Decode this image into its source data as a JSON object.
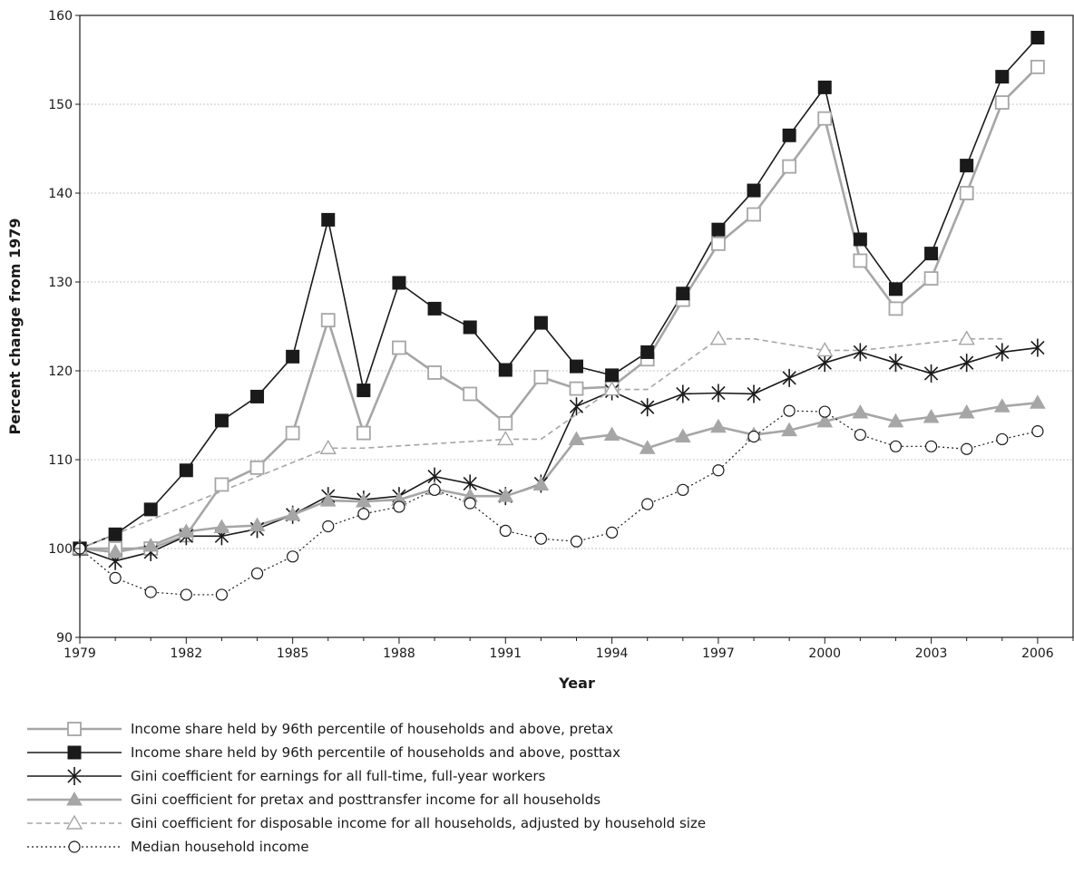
{
  "chart_data": {
    "type": "line",
    "xlabel": "Year",
    "ylabel": "Percent change from 1979",
    "xlim": [
      1979,
      2007
    ],
    "ylim": [
      90,
      160
    ],
    "x_ticks": [
      1979,
      1982,
      1985,
      1988,
      1991,
      1994,
      1997,
      2000,
      2003,
      2006
    ],
    "x_tick_labels": [
      "1979",
      "1982",
      "1985",
      "1988",
      "1991",
      "1994",
      "1997",
      "2000",
      "2003",
      "2006"
    ],
    "y_ticks": [
      90,
      100,
      110,
      120,
      130,
      140,
      150,
      160
    ],
    "y_tick_labels": [
      "90",
      "100",
      "110",
      "120",
      "130",
      "140",
      "150",
      "160"
    ],
    "grid": "horizontal dashed",
    "legend_position": "bottom",
    "series": [
      {
        "name": "Income share held by 96th percentile of households and above, pretax",
        "style": "solid",
        "color": "#a6a6a6",
        "marker": "square-open",
        "x": [
          1979,
          1980,
          1981,
          1982,
          1983,
          1984,
          1985,
          1986,
          1987,
          1988,
          1989,
          1990,
          1991,
          1992,
          1993,
          1994,
          1995,
          1996,
          1997,
          1998,
          1999,
          2000,
          2001,
          2002,
          2003,
          2004,
          2005,
          2006
        ],
        "y": [
          100,
          100,
          100,
          101.5,
          107.2,
          109.1,
          113.0,
          125.7,
          113.0,
          122.6,
          119.8,
          117.4,
          114.1,
          119.3,
          118.0,
          118.2,
          121.3,
          128.0,
          134.3,
          137.6,
          143.0,
          148.4,
          132.4,
          127.0,
          130.4,
          140.0,
          150.2,
          154.2
        ]
      },
      {
        "name": "Income share held by 96th percentile of households and above, posttax",
        "style": "solid",
        "color": "#1a1a1a",
        "marker": "square-filled",
        "x": [
          1979,
          1980,
          1981,
          1982,
          1983,
          1984,
          1985,
          1986,
          1987,
          1988,
          1989,
          1990,
          1991,
          1992,
          1993,
          1994,
          1995,
          1996,
          1997,
          1998,
          1999,
          2000,
          2001,
          2002,
          2003,
          2004,
          2005,
          2006
        ],
        "y": [
          100,
          101.6,
          104.4,
          108.8,
          114.4,
          117.1,
          121.6,
          137.0,
          117.8,
          129.9,
          127.0,
          124.9,
          120.1,
          125.4,
          120.5,
          119.5,
          122.1,
          128.7,
          135.9,
          140.3,
          146.5,
          151.9,
          134.8,
          129.2,
          133.2,
          143.1,
          153.1,
          157.5
        ]
      },
      {
        "name": "Gini coefficient for earnings for all full-time, full-year workers",
        "style": "solid",
        "color": "#1a1a1a",
        "marker": "asterisk",
        "x": [
          1979,
          1980,
          1981,
          1982,
          1983,
          1984,
          1985,
          1986,
          1987,
          1988,
          1989,
          1990,
          1991,
          1992,
          1993,
          1994,
          1995,
          1996,
          1997,
          1998,
          1999,
          2000,
          2001,
          2002,
          2003,
          2004,
          2005,
          2006
        ],
        "y": [
          100,
          98.6,
          99.6,
          101.4,
          101.4,
          102.2,
          103.8,
          105.9,
          105.5,
          105.9,
          108.1,
          107.3,
          105.9,
          107.3,
          116.0,
          117.7,
          115.9,
          117.4,
          117.5,
          117.4,
          119.2,
          120.9,
          122.1,
          120.9,
          119.7,
          120.9,
          122.1,
          122.6
        ]
      },
      {
        "name": "Gini coefficient for pretax and posttransfer income for all households",
        "style": "solid",
        "color": "#a6a6a6",
        "marker": "triangle-filled",
        "x": [
          1979,
          1980,
          1981,
          1982,
          1983,
          1984,
          1985,
          1986,
          1987,
          1988,
          1989,
          1990,
          1991,
          1992,
          1993,
          1994,
          1995,
          1996,
          1997,
          1998,
          1999,
          2000,
          2001,
          2002,
          2003,
          2004,
          2005,
          2006
        ],
        "y": [
          100,
          99.6,
          100.3,
          101.9,
          102.4,
          102.6,
          103.8,
          105.4,
          105.3,
          105.5,
          106.7,
          105.9,
          105.9,
          107.2,
          112.3,
          112.8,
          111.3,
          112.6,
          113.7,
          112.8,
          113.3,
          114.3,
          115.3,
          114.3,
          114.8,
          115.3,
          116.0,
          116.4
        ]
      },
      {
        "name": "Gini coefficient for disposable income for all households, adjusted by household size",
        "style": "dashed",
        "color": "#a6a6a6",
        "marker": "triangle-open",
        "x": [
          1979,
          1986,
          1991,
          1994,
          1997,
          2000,
          2004
        ],
        "y": [
          100,
          111.3,
          112.3,
          117.9,
          123.6,
          122.3,
          123.6
        ],
        "line_x": [
          1979,
          1986,
          1987,
          1991,
          1992,
          1994,
          1995,
          1997,
          1998,
          2000,
          2001,
          2004,
          2005
        ],
        "line_y": [
          100,
          111.3,
          111.3,
          112.3,
          112.3,
          117.9,
          117.9,
          123.6,
          123.6,
          122.3,
          122.3,
          123.6,
          123.6
        ]
      },
      {
        "name": "Median household income",
        "style": "dotted",
        "color": "#1a1a1a",
        "marker": "circle-open",
        "x": [
          1979,
          1980,
          1981,
          1982,
          1983,
          1984,
          1985,
          1986,
          1987,
          1988,
          1989,
          1990,
          1991,
          1992,
          1993,
          1994,
          1995,
          1996,
          1997,
          1998,
          1999,
          2000,
          2001,
          2002,
          2003,
          2004,
          2005,
          2006
        ],
        "y": [
          100,
          96.7,
          95.1,
          94.8,
          94.8,
          97.2,
          99.1,
          102.5,
          103.9,
          104.7,
          106.6,
          105.1,
          102.0,
          101.1,
          100.8,
          101.8,
          105.0,
          106.6,
          108.8,
          112.6,
          115.5,
          115.4,
          112.8,
          111.5,
          111.5,
          111.2,
          112.3,
          113.2
        ]
      }
    ]
  }
}
